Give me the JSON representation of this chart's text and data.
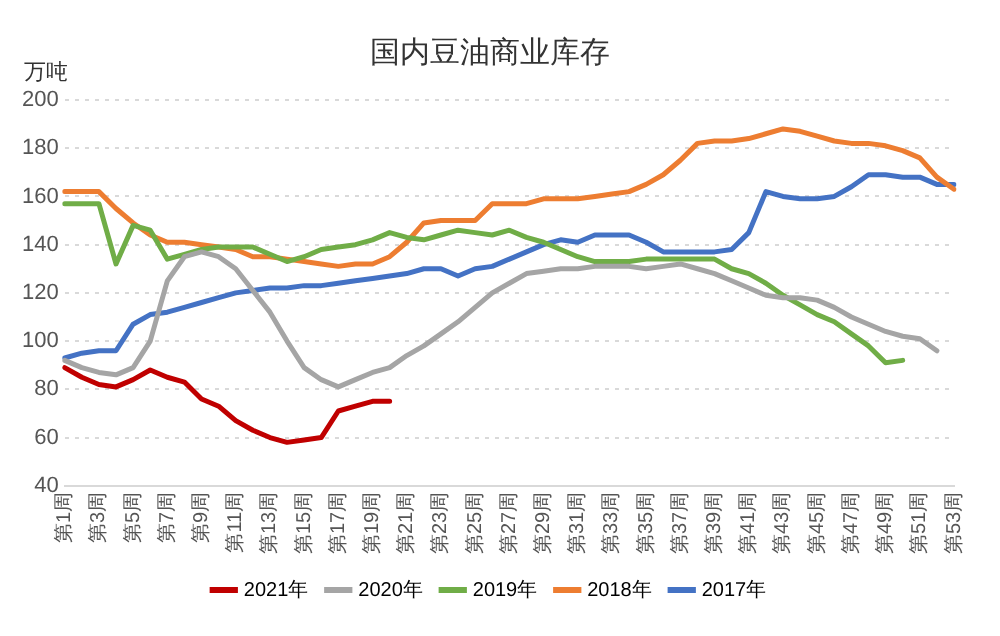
{
  "chart_data": {
    "type": "line",
    "title": "国内豆油商业库存",
    "ylabel": "万吨",
    "categories": [
      "第1周",
      null,
      "第3周",
      null,
      "第5周",
      null,
      "第7周",
      null,
      "第9周",
      null,
      "第11周",
      null,
      "第13周",
      null,
      "第15周",
      null,
      "第17周",
      null,
      "第19周",
      null,
      "第21周",
      null,
      "第23周",
      null,
      "第25周",
      null,
      "第27周",
      null,
      "第29周",
      null,
      "第31周",
      null,
      "第33周",
      null,
      "第35周",
      null,
      "第37周",
      null,
      "第39周",
      null,
      "第41周",
      null,
      "第43周",
      null,
      "第45周",
      null,
      "第47周",
      null,
      "第49周",
      null,
      "第51周",
      null,
      "第53周"
    ],
    "ylim": [
      40,
      200
    ],
    "yticks": [
      40,
      60,
      80,
      100,
      120,
      140,
      160,
      180,
      200
    ],
    "grid": "y",
    "legend": "bottom",
    "marker": "none",
    "line_style": "solid",
    "series": [
      {
        "name": "2021年",
        "color": "#c00000",
        "values": [
          89,
          85,
          82,
          81,
          84,
          88,
          85,
          83,
          76,
          73,
          67,
          63,
          60,
          58,
          59,
          60,
          71,
          73,
          75,
          75,
          null,
          null,
          null,
          null,
          null,
          null,
          null,
          null,
          null,
          null,
          null,
          null,
          null,
          null,
          null,
          null,
          null,
          null,
          null,
          null,
          null,
          null,
          null,
          null,
          null,
          null,
          null,
          null,
          null,
          null,
          null,
          null,
          null
        ]
      },
      {
        "name": "2020年",
        "color": "#a5a5a5",
        "values": [
          92,
          89,
          87,
          86,
          89,
          100,
          125,
          135,
          137,
          135,
          130,
          121,
          112,
          100,
          89,
          84,
          81,
          84,
          87,
          89,
          94,
          98,
          103,
          108,
          114,
          120,
          124,
          128,
          129,
          130,
          130,
          131,
          131,
          131,
          130,
          131,
          132,
          130,
          128,
          125,
          122,
          119,
          118,
          118,
          117,
          114,
          110,
          107,
          104,
          102,
          101,
          96,
          null
        ]
      },
      {
        "name": "2019年",
        "color": "#70ad47",
        "values": [
          157,
          157,
          157,
          132,
          148,
          146,
          134,
          136,
          138,
          139,
          139,
          139,
          136,
          133,
          135,
          138,
          139,
          140,
          142,
          145,
          143,
          142,
          144,
          146,
          145,
          144,
          146,
          143,
          141,
          138,
          135,
          133,
          133,
          133,
          134,
          134,
          134,
          134,
          134,
          130,
          128,
          124,
          119,
          115,
          111,
          108,
          103,
          98,
          91,
          92,
          null,
          null,
          null
        ]
      },
      {
        "name": "2018年",
        "color": "#ed7d31",
        "values": [
          162,
          162,
          162,
          155,
          149,
          144,
          141,
          141,
          140,
          139,
          138,
          135,
          135,
          134,
          133,
          132,
          131,
          132,
          132,
          135,
          141,
          149,
          150,
          150,
          150,
          157,
          157,
          157,
          159,
          159,
          159,
          160,
          161,
          162,
          165,
          169,
          175,
          182,
          183,
          183,
          184,
          186,
          188,
          187,
          185,
          183,
          182,
          182,
          181,
          179,
          176,
          168,
          163
        ]
      },
      {
        "name": "2017年",
        "color": "#4472c4",
        "values": [
          93,
          95,
          96,
          96,
          107,
          111,
          112,
          114,
          116,
          118,
          120,
          121,
          122,
          122,
          123,
          123,
          124,
          125,
          126,
          127,
          128,
          130,
          130,
          127,
          130,
          131,
          134,
          137,
          140,
          142,
          141,
          144,
          144,
          144,
          141,
          137,
          137,
          137,
          137,
          138,
          145,
          162,
          160,
          159,
          159,
          160,
          164,
          169,
          169,
          168,
          168,
          165,
          165
        ]
      }
    ]
  }
}
